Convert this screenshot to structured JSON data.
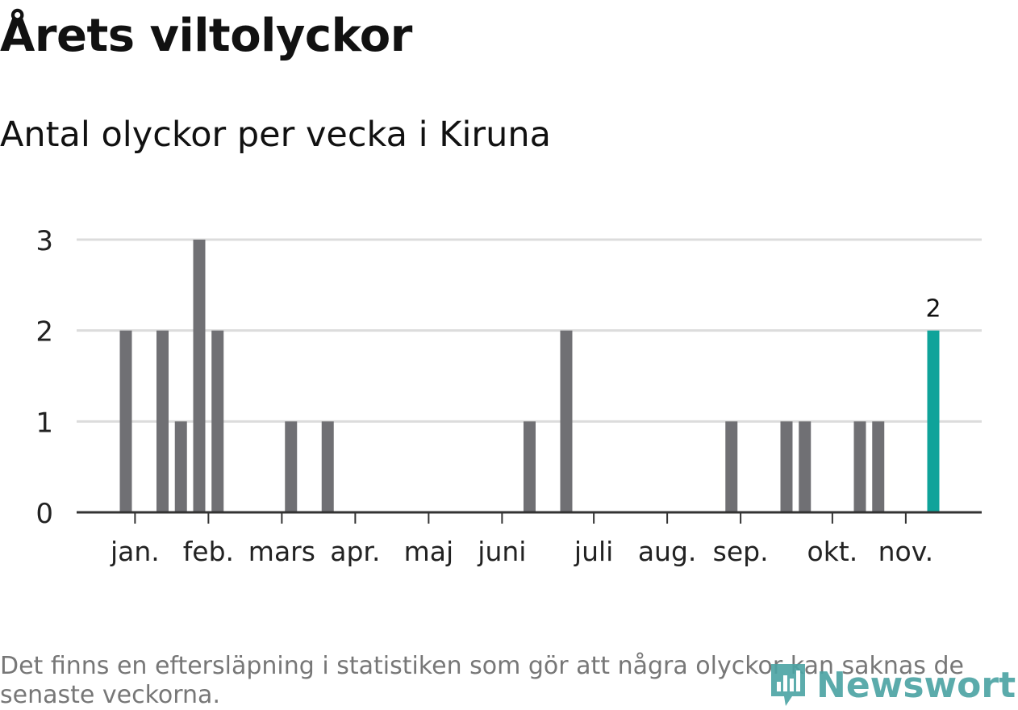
{
  "title": "Årets viltolyckor",
  "subtitle": "Antal olyckor per vecka i Kiruna",
  "note": "Det finns en eftersläpning i statistiken som gör att några olyckor kan saknas de senaste veckorna.",
  "logo_text": "Newsworthy",
  "colors": {
    "bar": "#707074",
    "highlight": "#0fa39a",
    "grid": "#dcdcdc",
    "axis": "#333333",
    "logo": "#4aa3a3"
  },
  "chart_data": {
    "type": "bar",
    "title": "Årets viltolyckor",
    "subtitle": "Antal olyckor per vecka i Kiruna",
    "xlabel": "",
    "ylabel": "",
    "ylim": [
      0,
      3
    ],
    "yticks": [
      0,
      1,
      2,
      3
    ],
    "grid": true,
    "x_axis": "vecka",
    "month_ticks": [
      {
        "label": "jan.",
        "week": 1.5
      },
      {
        "label": "feb.",
        "week": 5.5
      },
      {
        "label": "mars",
        "week": 9.5
      },
      {
        "label": "apr.",
        "week": 13.5
      },
      {
        "label": "maj",
        "week": 17.5
      },
      {
        "label": "juni",
        "week": 21.5
      },
      {
        "label": "juli",
        "week": 26.5
      },
      {
        "label": "aug.",
        "week": 30.5
      },
      {
        "label": "sep.",
        "week": 34.5
      },
      {
        "label": "okt.",
        "week": 39.5
      },
      {
        "label": "nov.",
        "week": 43.5
      }
    ],
    "weeks": [
      1,
      2,
      3,
      4,
      5,
      6,
      7,
      8,
      9,
      10,
      11,
      12,
      13,
      14,
      15,
      16,
      17,
      18,
      19,
      20,
      21,
      22,
      23,
      24,
      25,
      26,
      27,
      28,
      29,
      30,
      31,
      32,
      33,
      34,
      35,
      36,
      37,
      38,
      39,
      40,
      41,
      42,
      43,
      44,
      45
    ],
    "values": [
      2,
      0,
      2,
      1,
      3,
      2,
      0,
      0,
      0,
      1,
      0,
      1,
      0,
      0,
      0,
      0,
      0,
      0,
      0,
      0,
      0,
      0,
      1,
      0,
      2,
      0,
      0,
      0,
      0,
      0,
      0,
      0,
      0,
      1,
      0,
      0,
      1,
      1,
      0,
      0,
      1,
      1,
      0,
      0,
      2
    ],
    "highlight_index": 44,
    "highlight_label": "2"
  }
}
